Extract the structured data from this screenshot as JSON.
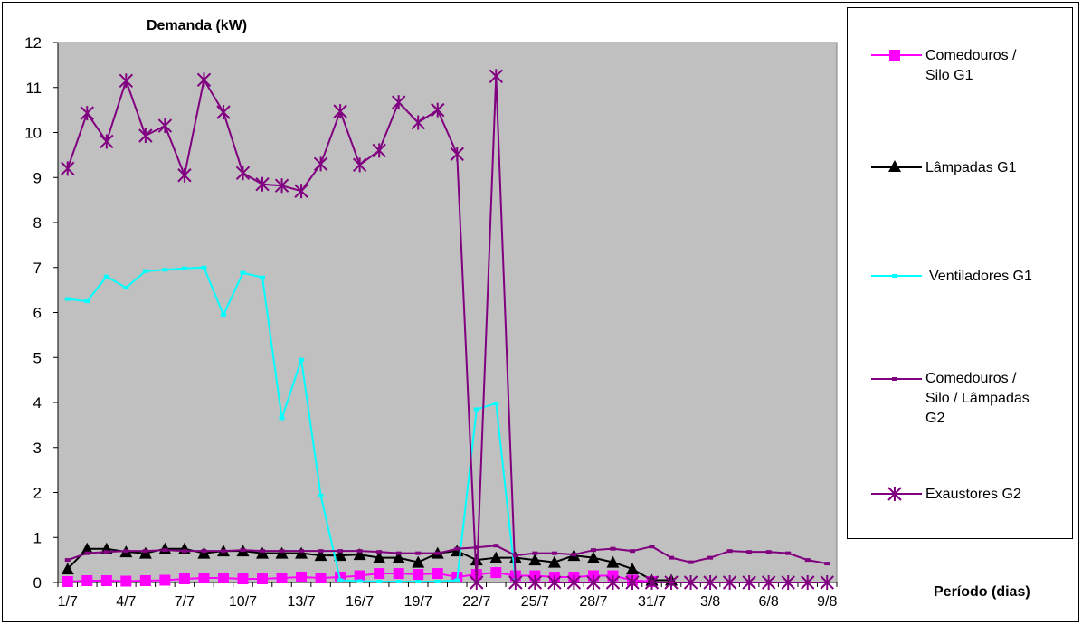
{
  "chart_data": {
    "type": "line",
    "ylabel": "Demanda (kW)",
    "xlabel": "Período (dias)",
    "ylim": [
      0,
      12
    ],
    "yticks": [
      "0",
      "1",
      "2",
      "3",
      "4",
      "5",
      "6",
      "7",
      "8",
      "9",
      "10",
      "11",
      "12"
    ],
    "categories": [
      "1/7",
      "2/7",
      "3/7",
      "4/7",
      "5/7",
      "6/7",
      "7/7",
      "8/7",
      "9/7",
      "10/7",
      "11/7",
      "12/7",
      "13/7",
      "14/7",
      "15/7",
      "16/7",
      "17/7",
      "18/7",
      "19/7",
      "20/7",
      "21/7",
      "22/7",
      "23/7",
      "24/7",
      "25/7",
      "26/7",
      "27/7",
      "28/7",
      "29/7",
      "30/7",
      "31/7",
      "1/8",
      "2/8",
      "3/8",
      "4/8",
      "5/8",
      "6/8",
      "7/8",
      "8/8",
      "9/8"
    ],
    "xtick_labels": [
      "1/7",
      "4/7",
      "7/7",
      "10/7",
      "13/7",
      "16/7",
      "19/7",
      "22/7",
      "25/7",
      "28/7",
      "31/7",
      "3/8",
      "6/8",
      "9/8"
    ],
    "grid": "none",
    "background": "#c0c0c0",
    "legend_position": "right",
    "series": [
      {
        "name": "Comedouros / Silo G1",
        "color": "#ff00ff",
        "marker": "square",
        "values": [
          0.02,
          0.04,
          0.04,
          0.03,
          0.04,
          0.05,
          0.08,
          0.1,
          0.1,
          0.08,
          0.08,
          0.1,
          0.12,
          0.1,
          0.12,
          0.15,
          0.2,
          0.2,
          0.18,
          0.2,
          0.12,
          0.18,
          0.22,
          0.15,
          0.15,
          0.12,
          0.12,
          0.15,
          0.15,
          0.05,
          0.02,
          null,
          null,
          null,
          null,
          null,
          null,
          null,
          null,
          null
        ]
      },
      {
        "name": "Lâmpadas G1",
        "color": "#000000",
        "marker": "triangle",
        "values": [
          0.3,
          0.75,
          0.75,
          0.68,
          0.65,
          0.75,
          0.75,
          0.65,
          0.7,
          0.7,
          0.65,
          0.65,
          0.65,
          0.6,
          0.6,
          0.62,
          0.55,
          0.55,
          0.45,
          0.65,
          0.7,
          0.5,
          0.55,
          0.55,
          0.5,
          0.45,
          0.6,
          0.55,
          0.45,
          0.3,
          0.05,
          0.05,
          null,
          null,
          null,
          null,
          null,
          null,
          null,
          null
        ]
      },
      {
        "name": "Ventiladores G1",
        "color": "#00ffff",
        "marker": "dash",
        "values": [
          6.3,
          6.25,
          6.8,
          6.55,
          6.92,
          6.95,
          6.98,
          7.0,
          5.95,
          6.88,
          6.78,
          3.65,
          4.95,
          1.93,
          0.05,
          0.03,
          0.02,
          0.02,
          0.02,
          0.02,
          0.05,
          3.85,
          3.98,
          0.05,
          null,
          null,
          null,
          null,
          null,
          null,
          null,
          null,
          null,
          null,
          null,
          null,
          null,
          null,
          null,
          null
        ]
      },
      {
        "name": "Comedouros / Silo / Lâmpadas G2",
        "color": "#800080",
        "marker": "dash",
        "values": [
          0.5,
          0.65,
          0.68,
          0.7,
          0.7,
          0.72,
          0.7,
          0.7,
          0.7,
          0.72,
          0.7,
          0.7,
          0.7,
          0.7,
          0.7,
          0.7,
          0.68,
          0.65,
          0.65,
          0.65,
          0.75,
          0.78,
          0.82,
          0.6,
          0.65,
          0.65,
          0.62,
          0.72,
          0.75,
          0.7,
          0.8,
          0.55,
          0.45,
          0.55,
          0.7,
          0.68,
          0.68,
          0.65,
          0.5,
          0.42
        ]
      },
      {
        "name": "Exaustores G2",
        "color": "#800080",
        "marker": "star",
        "values": [
          9.2,
          10.43,
          9.8,
          11.15,
          9.93,
          10.15,
          9.05,
          11.17,
          10.45,
          9.1,
          8.85,
          8.82,
          8.7,
          9.3,
          10.47,
          9.28,
          9.6,
          10.67,
          10.22,
          10.5,
          9.52,
          0.0,
          11.25,
          0.0,
          0.0,
          0.0,
          0.0,
          0.0,
          0.0,
          0.0,
          0.0,
          0.0,
          0.0,
          0.0,
          0.0,
          0.0,
          0.0,
          0.0,
          0.0,
          0.0
        ]
      }
    ]
  },
  "legend": {
    "items": [
      {
        "label": "Comedouros /\nSilo G1"
      },
      {
        "label": "Lâmpadas G1"
      },
      {
        "label": "Ventiladores G1"
      },
      {
        "label": "Comedouros /\nSilo / Lâmpadas\nG2"
      },
      {
        "label": "Exaustores G2"
      }
    ]
  }
}
